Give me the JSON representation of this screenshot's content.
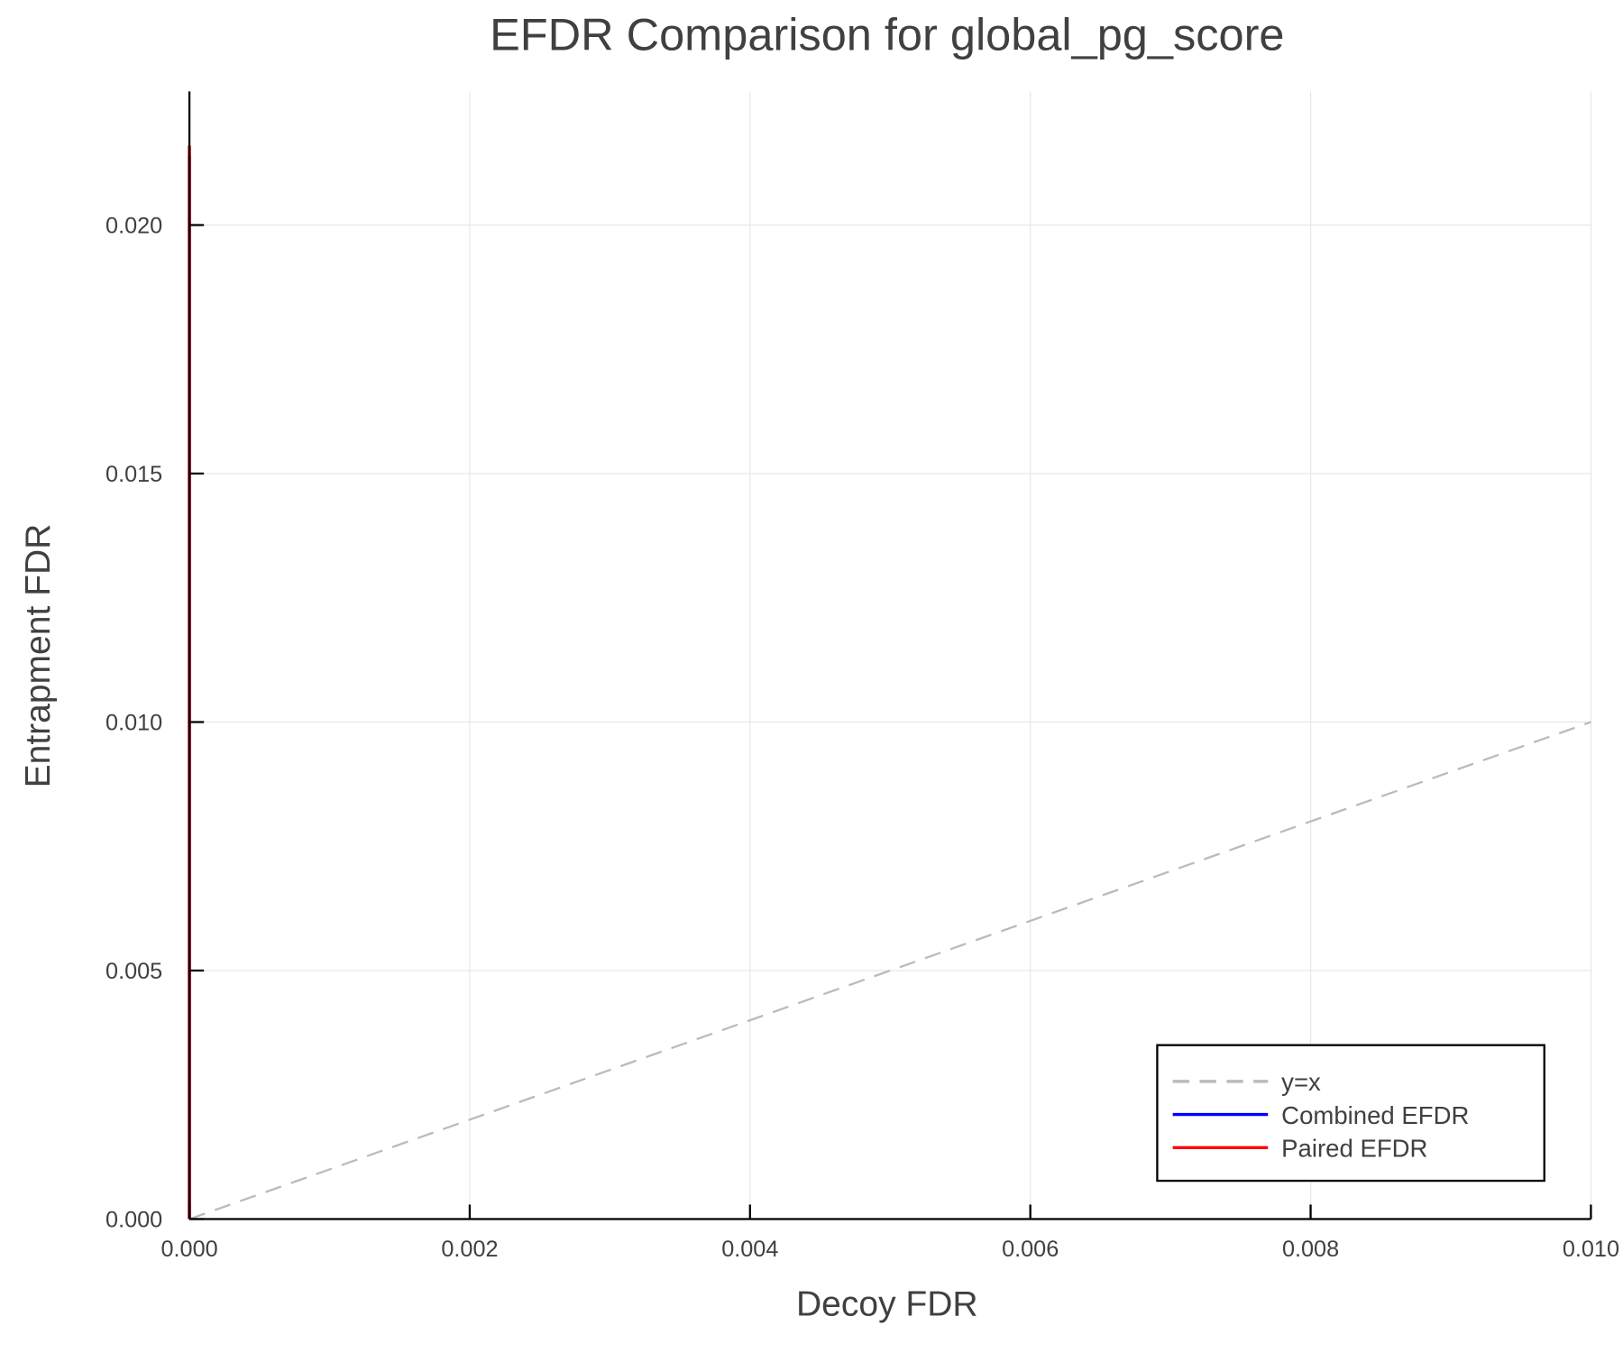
{
  "chart_data": {
    "type": "line",
    "title": "EFDR Comparison for global_pg_score",
    "xlabel": "Decoy FDR",
    "ylabel": "Entrapment FDR",
    "xlim": [
      0,
      0.01
    ],
    "ylim": [
      0,
      0.0227
    ],
    "xticks": [
      "0.000",
      "0.002",
      "0.004",
      "0.006",
      "0.008",
      "0.010"
    ],
    "yticks": [
      "0.000",
      "0.005",
      "0.010",
      "0.015",
      "0.020"
    ],
    "grid": true,
    "legend_position": "bottom-right",
    "series": [
      {
        "name": "y=x",
        "color": "#bbbbbb",
        "style": "dashed",
        "x": [
          0,
          0.01
        ],
        "y": [
          0,
          0.01
        ]
      },
      {
        "name": "Combined EFDR",
        "color": "#0000ff",
        "style": "solid",
        "x": [
          0,
          0,
          0
        ],
        "y": [
          0,
          0.01,
          0.0214
        ]
      },
      {
        "name": "Paired EFDR",
        "color": "#ff0000",
        "style": "solid",
        "x": [
          0,
          0,
          0
        ],
        "y": [
          0,
          0.01,
          0.0216
        ]
      }
    ]
  }
}
